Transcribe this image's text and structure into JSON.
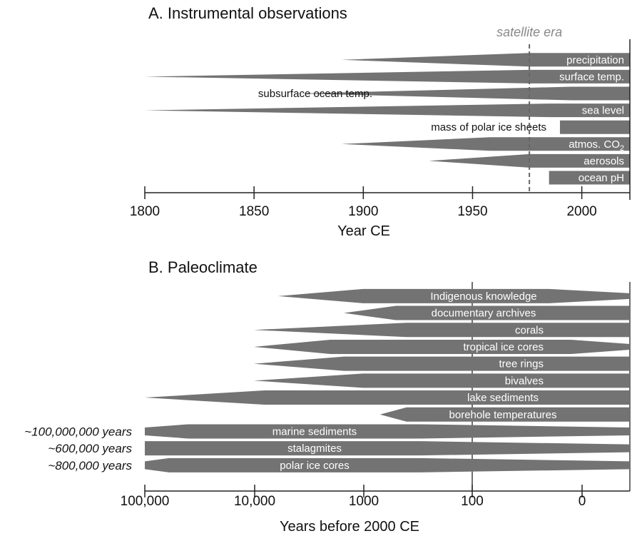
{
  "chart_data": [
    {
      "type": "bar",
      "title": "A. Instrumental observations",
      "xlabel": "Year CE",
      "xlim": [
        1800,
        2022
      ],
      "xticks": [
        "1800",
        "1850",
        "1900",
        "1950",
        "2000"
      ],
      "annotation": {
        "label": "satellite era",
        "x": 1976
      },
      "series": [
        {
          "name": "precipitation",
          "taper_start": 1890,
          "full_start": 1976,
          "end": 2022
        },
        {
          "name": "surface temp.",
          "taper_start": 1800,
          "full_start": 1976,
          "end": 2022
        },
        {
          "name": "subsurface ocean temp.",
          "taper_start": 1870,
          "full_start": 1995,
          "end": 2022
        },
        {
          "name": "sea level",
          "taper_start": 1800,
          "full_start": 1985,
          "end": 2022
        },
        {
          "name": "mass of polar ice sheets",
          "taper_start": 1990,
          "full_start": 1990,
          "end": 2022
        },
        {
          "name": "atmos. CO2",
          "taper_start": 1890,
          "full_start": 1958,
          "end": 2022
        },
        {
          "name": "aerosols",
          "taper_start": 1930,
          "full_start": 1976,
          "end": 2022
        },
        {
          "name": "ocean pH",
          "taper_start": 1985,
          "full_start": 1985,
          "end": 2022
        }
      ]
    },
    {
      "type": "bar",
      "title": "B. Paleoclimate",
      "xlabel": "Years before 2000 CE",
      "xscale": "log",
      "xticks": [
        "100,000",
        "10,000",
        "1000",
        "100",
        "0"
      ],
      "series": [
        {
          "name": "Indigenous knowledge",
          "start": 6000,
          "full": 1000,
          "fade_end": 30
        },
        {
          "name": "documentary archives",
          "start": 1500,
          "full": 500,
          "fade_end": -1
        },
        {
          "name": "corals",
          "start": 10000,
          "full": 400,
          "fade_end": -1
        },
        {
          "name": "tropical ice cores",
          "start": 10000,
          "full": 2000,
          "fade_end": 10
        },
        {
          "name": "tree rings",
          "start": 10000,
          "full": 1500,
          "fade_end": -1
        },
        {
          "name": "bivalves",
          "start": 10000,
          "full": 1000,
          "fade_end": -1
        },
        {
          "name": "lake sediments",
          "start": 100000,
          "full": 8000,
          "fade_end": -1
        },
        {
          "name": "borehole temperatures",
          "start": 700,
          "full": 400,
          "fade_end": -1
        },
        {
          "name": "marine sediments",
          "start": 100000,
          "full": 40000,
          "fade_end": 300,
          "span": "~100,000,000 years"
        },
        {
          "name": "stalagmites",
          "start": 100000,
          "full": 100000,
          "fade_end": 300,
          "span": "~600,000 years"
        },
        {
          "name": "polar ice cores",
          "start": 100000,
          "full": 60000,
          "fade_end": 300,
          "span": "~800,000 years"
        }
      ]
    }
  ],
  "colors": {
    "bar": "#737373",
    "axis": "#222222",
    "era_line": "#666666",
    "grid": "#222222"
  }
}
